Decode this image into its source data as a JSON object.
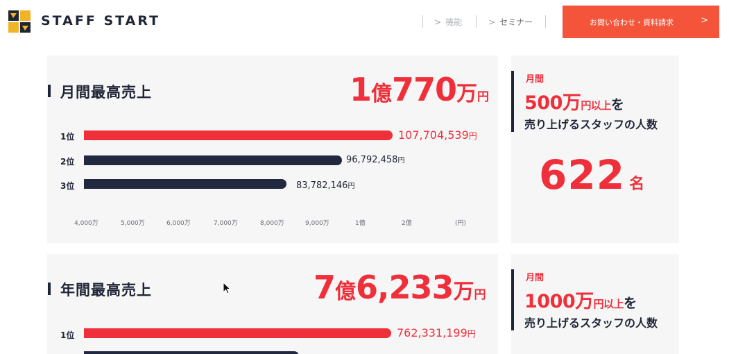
{
  "header": {
    "brand": "STAFF START",
    "nav": [
      {
        "label": "機能"
      },
      {
        "label": "セミナー"
      }
    ],
    "cta_label": "お問い合わせ・資料請求",
    "cta_arrow": ">",
    "nav_chevron": ">"
  },
  "monthly": {
    "title": "月間最高売上",
    "highlight": {
      "num1": "1",
      "unit1": "億",
      "num2": "770",
      "unit2": "万",
      "yen": "円"
    },
    "ranks": [
      {
        "label": "1位",
        "value": "107,704,539",
        "amount": 107704539,
        "yen": "円"
      },
      {
        "label": "2位",
        "value": "96,792,458",
        "amount": 96792458,
        "yen": "円"
      },
      {
        "label": "3位",
        "value": "83,782,146",
        "amount": 83782146,
        "yen": "円"
      }
    ],
    "ticks": [
      "4,000万",
      "5,000万",
      "6,000万",
      "7,000万",
      "8,000万",
      "9,000万",
      "1億",
      "2億",
      "(円)"
    ]
  },
  "monthly_side": {
    "label": "月間",
    "amount": "500",
    "unit": "万",
    "yen_above": "円以上",
    "wo": "を",
    "sub": "売り上げるスタッフの人数",
    "count": "622",
    "count_unit": "名"
  },
  "annual": {
    "title": "年間最高売上",
    "highlight": {
      "num1": "7",
      "unit1": "億",
      "num2": "6,233",
      "unit2": "万",
      "yen": "円"
    },
    "ranks": [
      {
        "label": "1位",
        "value": "762,331,199",
        "amount": 762331199,
        "yen": "円"
      }
    ]
  },
  "annual_side": {
    "label": "月間",
    "amount": "1000",
    "unit": "万",
    "yen_above": "円以上",
    "wo": "を",
    "sub": "売り上げるスタッフの人数"
  },
  "colors": {
    "accent": "#ef2f3a",
    "cta": "#f4543a",
    "navy": "#1f2535",
    "card": "#f6f6f7"
  }
}
